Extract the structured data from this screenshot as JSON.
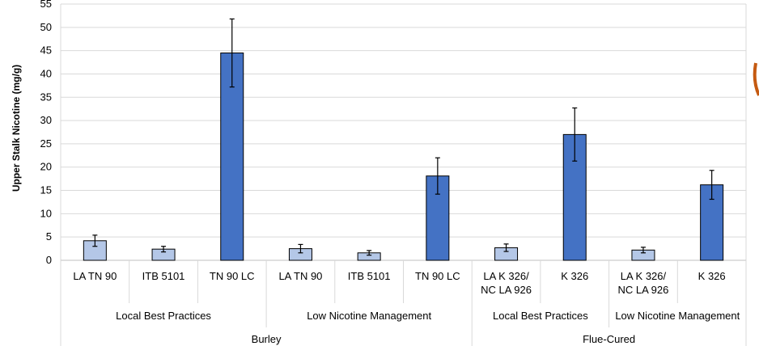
{
  "chart_data": {
    "type": "bar",
    "title": "",
    "xlabel": "",
    "ylabel": "Upper Stalk Nicotine (mg/g)",
    "ylim": [
      0,
      55
    ],
    "yticks": [
      0,
      5,
      10,
      15,
      20,
      25,
      30,
      35,
      40,
      45,
      50,
      55
    ],
    "grid": true,
    "legend": "none",
    "colors": {
      "light": "#b4c7e7",
      "dark": "#4472c4",
      "grid": "#d9d9d9"
    },
    "bars": [
      {
        "label": [
          "LA TN 90"
        ],
        "value": 4.2,
        "error": 1.2,
        "shade": "light"
      },
      {
        "label": [
          "ITB 5101"
        ],
        "value": 2.4,
        "error": 0.6,
        "shade": "light"
      },
      {
        "label": [
          "TN 90 LC"
        ],
        "value": 44.5,
        "error": 7.3,
        "shade": "dark"
      },
      {
        "label": [
          "LA TN 90"
        ],
        "value": 2.5,
        "error": 0.9,
        "shade": "light"
      },
      {
        "label": [
          "ITB 5101"
        ],
        "value": 1.6,
        "error": 0.5,
        "shade": "light"
      },
      {
        "label": [
          "TN 90 LC"
        ],
        "value": 18.1,
        "error": 3.9,
        "shade": "dark"
      },
      {
        "label": [
          "LA K 326/",
          "NC LA 926"
        ],
        "value": 2.7,
        "error": 0.8,
        "shade": "light"
      },
      {
        "label": [
          "K 326"
        ],
        "value": 27.0,
        "error": 5.7,
        "shade": "dark"
      },
      {
        "label": [
          "LA K 326/",
          "NC LA 926"
        ],
        "value": 2.2,
        "error": 0.6,
        "shade": "light"
      },
      {
        "label": [
          "K 326"
        ],
        "value": 16.2,
        "error": 3.1,
        "shade": "dark"
      }
    ],
    "groups": [
      {
        "label": "Local Best Practices",
        "bar_count": 3
      },
      {
        "label": "Low Nicotine Management",
        "bar_count": 3
      },
      {
        "label": "Local Best Practices",
        "bar_count": 2
      },
      {
        "label": "Low Nicotine Management",
        "bar_count": 2
      }
    ],
    "supergroups": [
      {
        "label": "Burley",
        "bar_count": 6
      },
      {
        "label": "Flue-Cured",
        "bar_count": 4
      }
    ]
  }
}
